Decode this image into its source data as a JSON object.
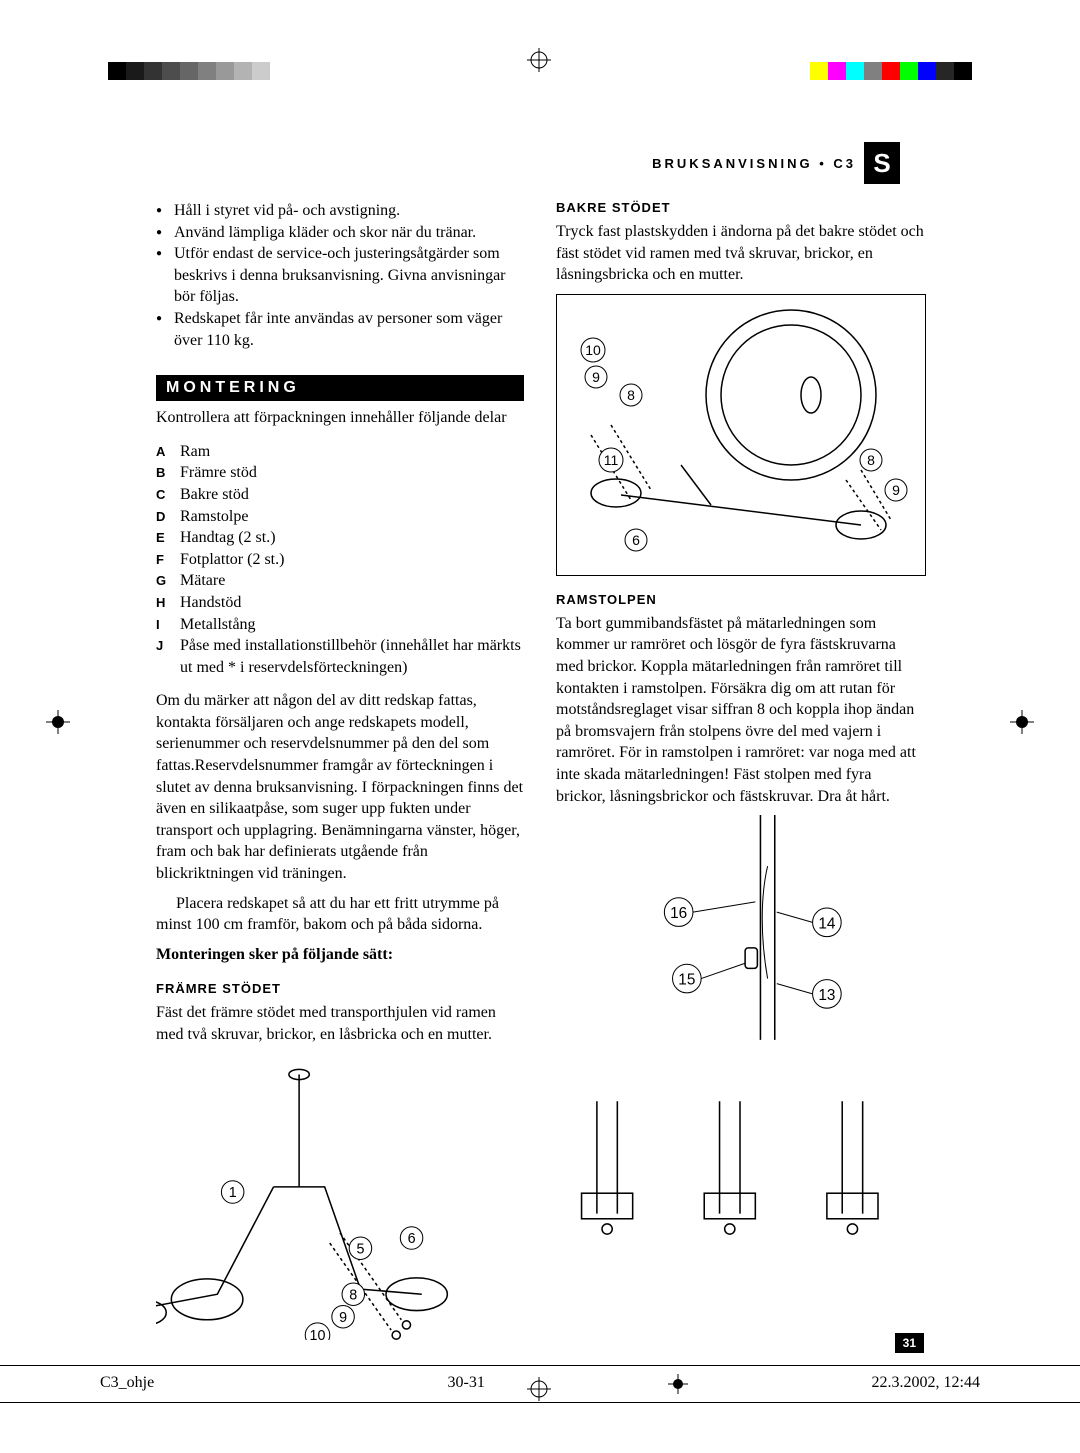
{
  "color_bars": {
    "left": [
      "#000000",
      "#1a1a1a",
      "#333333",
      "#4d4d4d",
      "#666666",
      "#808080",
      "#999999",
      "#b3b3b3",
      "#cccccc",
      "#ffffff"
    ],
    "right": [
      "#ffff00",
      "#ff00ff",
      "#00ffff",
      "#808080",
      "#ff0000",
      "#00ff00",
      "#0000ff",
      "#262626",
      "#000000"
    ]
  },
  "header": {
    "title": "BRUKSANVISNING • C3",
    "lang": "S"
  },
  "left_col": {
    "bullets": [
      "Håll i styret vid på- och avstigning.",
      "Använd lämpliga kläder och skor när du tränar.",
      "Utför endast de service-och justeringsåtgärder som beskrivs i denna bruksanvisning. Givna anvisningar bör följas.",
      "Redskapet får inte användas av personer som väger över 110 kg."
    ],
    "section_title": "MONTERING",
    "intro": "Kontrollera att förpackningen innehåller följande delar",
    "parts": [
      {
        "l": "A",
        "t": "Ram"
      },
      {
        "l": "B",
        "t": "Främre stöd"
      },
      {
        "l": "C",
        "t": "Bakre stöd"
      },
      {
        "l": "D",
        "t": "Ramstolpe"
      },
      {
        "l": "E",
        "t": "Handtag (2 st.)"
      },
      {
        "l": "F",
        "t": "Fotplattor (2 st.)"
      },
      {
        "l": "G",
        "t": "Mätare"
      },
      {
        "l": "H",
        "t": "Handstöd"
      },
      {
        "l": "I",
        "t": "Metallstång"
      },
      {
        "l": "J",
        "t": "Påse med installationstillbehör (innehållet har märkts ut med * i reservdelsförteckningen)"
      }
    ],
    "para1": "Om du märker att någon del av ditt redskap fattas, kontakta försäljaren och ange redskapets modell, serienummer och reservdelsnummer på den del som fattas.Reservdelsnummer framgår av förteckningen i slutet av denna bruksanvisning. I förpackningen finns det även en silikaatpåse, som suger upp fukten under transport och upplagring. Benämningarna vänster, höger, fram och bak har definierats utgående från blickriktningen vid träningen.",
    "para2": "Placera redskapet så att du har ett fritt utrymme på minst 100 cm framför, bakom och på båda sidorna.",
    "assembly_heading": "Monteringen sker på följande sätt:",
    "sub1_title": "FRÄMRE STÖDET",
    "sub1_text": "Fäst det främre stödet med transporthjulen vid ramen med två skruvar, brickor, en låsbricka och en mutter.",
    "diagram1_labels": [
      "1",
      "5",
      "6",
      "8",
      "9",
      "10"
    ]
  },
  "right_col": {
    "sub1_title": "BAKRE STÖDET",
    "sub1_text": "Tryck fast plastskydden i ändorna på det bakre stödet och fäst stödet vid ramen med två skruvar, brickor, en låsningsbricka och en mutter.",
    "diagram1_labels": [
      "6",
      "8",
      "8",
      "9",
      "9",
      "10",
      "11"
    ],
    "sub2_title": "RAMSTOLPEN",
    "sub2_text": "Ta bort gummibandsfästet på mätarledningen som kommer ur ramröret och lösgör de fyra fästskruvarna med brickor. Koppla mätarledningen från ramröret till kontakten i ramstolpen. Försäkra dig om att rutan för motståndsreglaget visar siffran 8 och koppla ihop ändan på bromsvajern från stolpens övre del med vajern i ramröret. För in ramstolpen i ramröret: var noga med att inte skada mätarledningen! Fäst stolpen med fyra brickor, låsningsbrickor och fästskruvar. Dra åt hårt.",
    "diagram2_labels": [
      "13",
      "14",
      "15",
      "16"
    ]
  },
  "page_number": "31",
  "footer": {
    "file": "C3_ohje",
    "pages": "30-31",
    "datetime": "22.3.2002, 12:44"
  }
}
